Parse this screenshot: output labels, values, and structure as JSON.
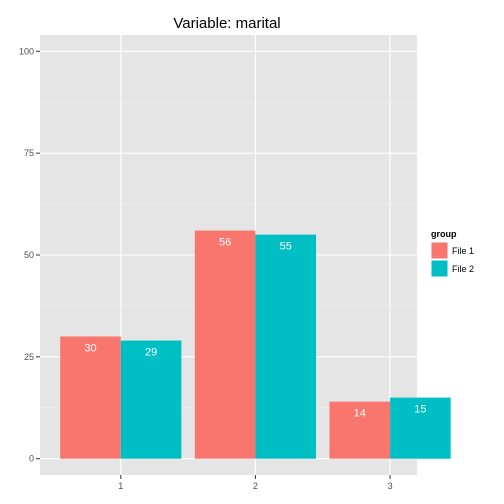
{
  "chart_data": {
    "type": "bar",
    "title": "Variable:  marital",
    "xlabel": "",
    "ylabel": "",
    "categories": [
      "1",
      "2",
      "3"
    ],
    "series": [
      {
        "name": "File 1",
        "values": [
          30,
          56,
          14
        ],
        "labels": [
          "30",
          "56",
          "14"
        ],
        "color": "#F8766D"
      },
      {
        "name": "File 2",
        "values": [
          29,
          55,
          15
        ],
        "labels": [
          "29",
          "55",
          "15"
        ],
        "color": "#00BFC4"
      }
    ],
    "ylim": [
      -4,
      104
    ],
    "yticks": [
      0,
      25,
      50,
      75,
      100
    ],
    "ytick_labels": [
      "0",
      "25",
      "50",
      "75",
      "100"
    ],
    "grid": true,
    "legend": {
      "title": "group",
      "position": "right"
    },
    "colors": {
      "panel": "#E5E5E5",
      "grid_major": "#FFFFFF",
      "grid_minor": "#F2F2F2"
    }
  }
}
